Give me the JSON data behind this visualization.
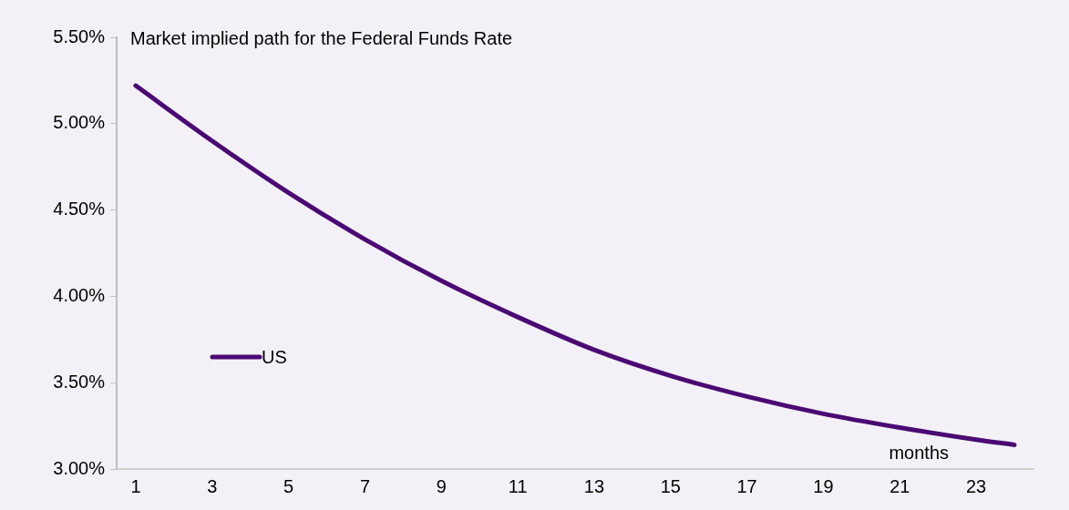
{
  "chart_data": {
    "type": "line",
    "title": "Market implied path for the Federal Funds Rate",
    "xlabel": "months",
    "x": [
      1,
      3,
      5,
      7,
      9,
      11,
      13,
      15,
      17,
      19,
      21,
      23,
      24
    ],
    "series": [
      {
        "name": "US",
        "color": "#4b0a73",
        "values": [
          5.22,
          4.9,
          4.6,
          4.33,
          4.09,
          3.88,
          3.69,
          3.54,
          3.42,
          3.32,
          3.24,
          3.17,
          3.14
        ]
      }
    ],
    "xlim": [
      0.5,
      24.5
    ],
    "xticks": [
      1,
      3,
      5,
      7,
      9,
      11,
      13,
      15,
      17,
      19,
      21,
      23
    ],
    "ylim": [
      3.0,
      5.5
    ],
    "yticks": [
      {
        "value": 3.0,
        "label": "3.00%"
      },
      {
        "value": 3.5,
        "label": "3.50%"
      },
      {
        "value": 4.0,
        "label": "4.00%"
      },
      {
        "value": 4.5,
        "label": "4.50%"
      },
      {
        "value": 5.0,
        "label": "5.00%"
      },
      {
        "value": 5.5,
        "label": "5.50%"
      }
    ],
    "grid": false,
    "legend": "left",
    "marker": "none",
    "line_style": "solid"
  }
}
